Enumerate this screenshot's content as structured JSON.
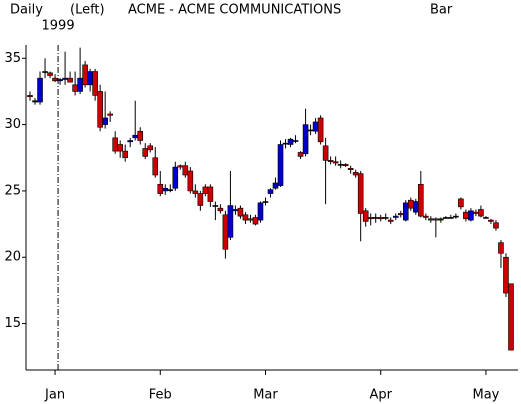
{
  "chart_data": {
    "type": "candlestick",
    "period": "Daily",
    "scale_side": "(Left)",
    "title": "ACME - ACME COMMUNICATIONS",
    "style": "Bar",
    "year_line": {
      "value": 5.6,
      "label": "1999"
    },
    "up_color": "#0000cc",
    "down_color": "#cc0000",
    "candles": [
      [
        32.2,
        32.5,
        31.8,
        32.1
      ],
      [
        31.7,
        32,
        31.5,
        31.8
      ],
      [
        31.7,
        34,
        31.5,
        33.5
      ],
      [
        34,
        35,
        33.5,
        34
      ],
      [
        33.9,
        34,
        33.5,
        33.7
      ],
      [
        33.5,
        33.8,
        33.2,
        33.3
      ],
      [
        33.3,
        33.5,
        33,
        33.4
      ],
      [
        33.4,
        35.5,
        33,
        33.5
      ],
      [
        33.5,
        34,
        33.2,
        33.2
      ],
      [
        33,
        34,
        32.2,
        32.5
      ],
      [
        32.5,
        35.8,
        32.3,
        33.5
      ],
      [
        34.5,
        34.8,
        32.8,
        33
      ],
      [
        33,
        34.2,
        32.5,
        34
      ],
      [
        34,
        34.2,
        31.8,
        32.2
      ],
      [
        32.5,
        33,
        29.5,
        29.8
      ],
      [
        30,
        32.5,
        29.7,
        30.5
      ],
      [
        30.8,
        31,
        30.2,
        30.7
      ],
      [
        29,
        29.5,
        27.8,
        28
      ],
      [
        28.5,
        28.8,
        27.5,
        28
      ],
      [
        28,
        28.5,
        27.2,
        27.5
      ],
      [
        28.7,
        29,
        28.3,
        28.8
      ],
      [
        29,
        31.8,
        28.8,
        29.2
      ],
      [
        29.5,
        29.8,
        28.5,
        28.8
      ],
      [
        28.2,
        28.6,
        27.4,
        27.6
      ],
      [
        28.4,
        28.6,
        27.9,
        28.1
      ],
      [
        27.5,
        28.3,
        26,
        26.2
      ],
      [
        25.5,
        26.5,
        24.6,
        24.8
      ],
      [
        25,
        25.5,
        24.7,
        25.2
      ],
      [
        25.1,
        25.5,
        24.9,
        25.1
      ],
      [
        25.2,
        27.2,
        25,
        26.8
      ],
      [
        26.9,
        27,
        26.6,
        26.8
      ],
      [
        26.9,
        27.2,
        26,
        26.2
      ],
      [
        26.5,
        26.8,
        24.8,
        25
      ],
      [
        25,
        25.5,
        24.5,
        24.8
      ],
      [
        24.8,
        25,
        23.5,
        23.9
      ],
      [
        25.3,
        25.5,
        24.6,
        24.8
      ],
      [
        25.3,
        25.5,
        23.8,
        24.2
      ],
      [
        23.9,
        24.2,
        22.8,
        23.9
      ],
      [
        23.7,
        24,
        23.3,
        23.5
      ],
      [
        23.2,
        23.5,
        19.9,
        20.6
      ],
      [
        21.5,
        26.5,
        21.3,
        23.9
      ],
      [
        23.5,
        23.9,
        23.2,
        23.6
      ],
      [
        23.7,
        23.9,
        22.9,
        23.1
      ],
      [
        23.2,
        23.4,
        22.5,
        22.8
      ],
      [
        22.9,
        23.2,
        22.6,
        22.8
      ],
      [
        23,
        23.2,
        22.4,
        22.5
      ],
      [
        22.8,
        24.2,
        22.6,
        24.1
      ],
      [
        24.2,
        24.5,
        23.9,
        24.2
      ],
      [
        24.8,
        25.2,
        24.5,
        25.1
      ],
      [
        25.2,
        26,
        25.1,
        25.6
      ],
      [
        25.4,
        28.8,
        25.3,
        28.5
      ],
      [
        28.6,
        28.9,
        28.2,
        28.6
      ],
      [
        28.5,
        29,
        28.3,
        28.9
      ],
      [
        28.8,
        29.2,
        28.6,
        28.8
      ],
      [
        27.9,
        28,
        27.4,
        27.6
      ],
      [
        27.8,
        31.2,
        27.6,
        30
      ],
      [
        29.6,
        30,
        29.2,
        29.6
      ],
      [
        29.5,
        30.5,
        29.3,
        30.2
      ],
      [
        30.5,
        30.7,
        28.5,
        28.7
      ],
      [
        28.4,
        29,
        24,
        27.3
      ],
      [
        27.3,
        27.6,
        27,
        27.2
      ],
      [
        27.2,
        27.6,
        26.9,
        27.1
      ],
      [
        27,
        27.3,
        26.7,
        27
      ],
      [
        27,
        27.1,
        26.8,
        26.9
      ],
      [
        26.7,
        26.9,
        26.3,
        26.6
      ],
      [
        26.4,
        26.6,
        26,
        26.2
      ],
      [
        26.3,
        26.5,
        21.2,
        23.3
      ],
      [
        23.5,
        23.7,
        22.3,
        22.7
      ],
      [
        23,
        23.3,
        22.4,
        22.9
      ],
      [
        23,
        23.3,
        22.6,
        23
      ],
      [
        23,
        23.2,
        22.7,
        22.9
      ],
      [
        23,
        23.3,
        22.8,
        23
      ],
      [
        22.8,
        23,
        22.5,
        22.7
      ],
      [
        23,
        23.3,
        22.8,
        23.1
      ],
      [
        23.3,
        23.5,
        23,
        23.2
      ],
      [
        22.8,
        24.3,
        22.7,
        24.1
      ],
      [
        24.3,
        24.5,
        23.5,
        23.7
      ],
      [
        23.4,
        24.4,
        23.2,
        24.2
      ],
      [
        25.5,
        26.5,
        23,
        23.1
      ],
      [
        23.1,
        23.3,
        22.8,
        23
      ],
      [
        22.9,
        23.1,
        22.6,
        22.8
      ],
      [
        22.9,
        23,
        21.5,
        22.8
      ],
      [
        22.8,
        23,
        22.6,
        22.9
      ],
      [
        23,
        23.1,
        22.9,
        23
      ],
      [
        23,
        23.2,
        22.9,
        23
      ],
      [
        23.1,
        23.3,
        22.9,
        23.1
      ],
      [
        24.4,
        24.5,
        23.6,
        23.8
      ],
      [
        23.4,
        23.6,
        22.7,
        22.9
      ],
      [
        22.8,
        23.7,
        22.7,
        23.5
      ],
      [
        23.4,
        23.6,
        23.1,
        23.3
      ],
      [
        23.6,
        23.9,
        23,
        23.1
      ],
      [
        23,
        23.1,
        22.9,
        23
      ],
      [
        22.8,
        22.9,
        22.5,
        22.7
      ],
      [
        22.6,
        22.8,
        22,
        22.2
      ],
      [
        21.1,
        21.3,
        19.2,
        20.3
      ],
      [
        20,
        20.3,
        17,
        17.3
      ],
      [
        18,
        18,
        13,
        13
      ]
    ],
    "xlim": [
      -0.8,
      97.4
    ],
    "xticks": [
      {
        "value": 5,
        "label": "Jan"
      },
      {
        "value": 26,
        "label": "Feb"
      },
      {
        "value": 47,
        "label": "Mar"
      },
      {
        "value": 70,
        "label": "Apr"
      },
      {
        "value": 91,
        "label": "May"
      }
    ],
    "ylim": [
      11.5,
      36
    ],
    "yticks": [
      15,
      20,
      25,
      30,
      35
    ]
  }
}
